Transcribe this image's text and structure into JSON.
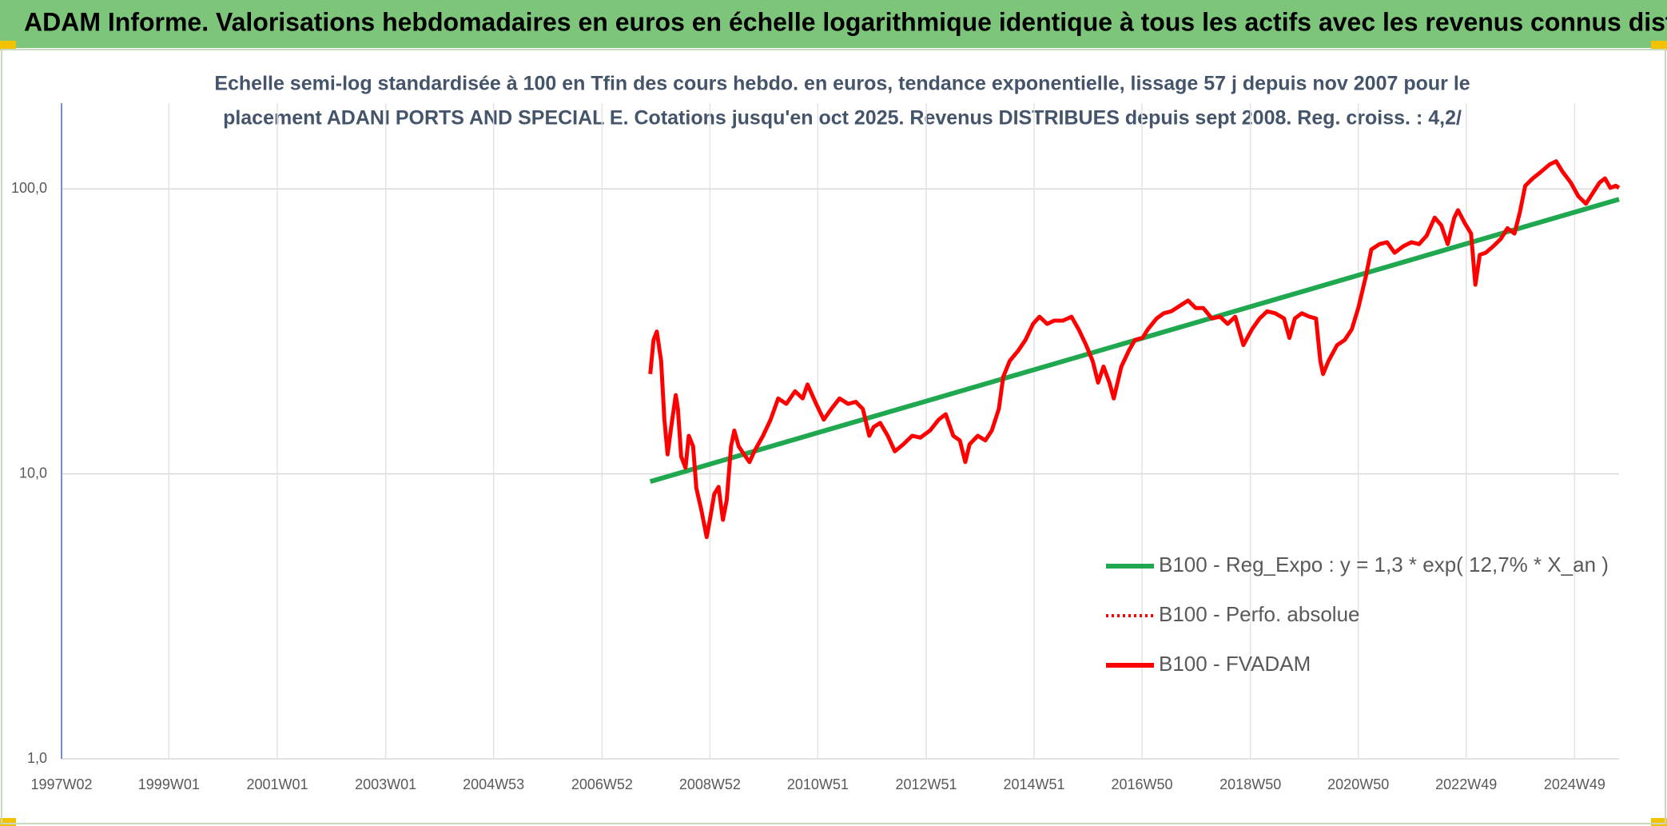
{
  "chart_data": {
    "type": "line",
    "title": "ADAM Informe. Valorisations hebdomadaires en euros en échelle logarithmique identique à tous les actifs avec les revenus connus distribués",
    "subtitle": [
      "Echelle semi-log standardisée à 100 en Tfin des cours hebdo. en euros, tendance exponentielle, lissage 57 j depuis nov 2007 pour le",
      "placement ADANI PORTS AND SPECIAL E. Cotations jusqu'en oct 2025. Revenus DISTRIBUES depuis sept 2008. Reg. croiss. : 4,2/"
    ],
    "log_y": true,
    "grid": true,
    "legend_position": "right",
    "xlim": [
      1997.02,
      2025.75
    ],
    "xticks": [
      {
        "value": 1997.02,
        "label": "1997W02"
      },
      {
        "value": 1999.0,
        "label": "1999W01"
      },
      {
        "value": 2001.0,
        "label": "2001W01"
      },
      {
        "value": 2003.0,
        "label": "2003W01"
      },
      {
        "value": 2004.99,
        "label": "2004W53"
      },
      {
        "value": 2006.99,
        "label": "2006W52"
      },
      {
        "value": 2008.98,
        "label": "2008W52"
      },
      {
        "value": 2010.97,
        "label": "2010W51"
      },
      {
        "value": 2012.97,
        "label": "2012W51"
      },
      {
        "value": 2014.96,
        "label": "2014W51"
      },
      {
        "value": 2016.95,
        "label": "2016W50"
      },
      {
        "value": 2018.95,
        "label": "2018W50"
      },
      {
        "value": 2020.94,
        "label": "2020W50"
      },
      {
        "value": 2022.93,
        "label": "2022W49"
      },
      {
        "value": 2024.93,
        "label": "2024W49"
      }
    ],
    "ylim": [
      1,
      200
    ],
    "yticks": [
      {
        "value": 1,
        "label": "1,0"
      },
      {
        "value": 10,
        "label": "10,0"
      },
      {
        "value": 100,
        "label": "100,0"
      }
    ],
    "series": [
      {
        "name": "B100 - Reg_Expo : y = 1,3 * exp( 12,7% *  X_an )",
        "color": "#1fa84f",
        "style": "solid",
        "x": [
          2007.88,
          2025.75
        ],
        "values": [
          9.4,
          92
        ]
      },
      {
        "name": "B100 - Perfo. absolue",
        "color": "#ff0000",
        "style": "dotted"
      },
      {
        "name": "B100 - FVADAM",
        "color": "#ff0000",
        "style": "solid",
        "x": [
          2007.88,
          2007.94,
          2008.0,
          2008.08,
          2008.14,
          2008.2,
          2008.27,
          2008.35,
          2008.39,
          2008.45,
          2008.53,
          2008.59,
          2008.67,
          2008.73,
          2008.82,
          2008.92,
          2008.98,
          2009.06,
          2009.14,
          2009.22,
          2009.29,
          2009.37,
          2009.43,
          2009.51,
          2009.61,
          2009.71,
          2009.8,
          2009.96,
          2010.1,
          2010.24,
          2010.39,
          2010.55,
          2010.69,
          2010.78,
          2010.94,
          2011.08,
          2011.22,
          2011.37,
          2011.53,
          2011.67,
          2011.8,
          2011.92,
          2012.0,
          2012.12,
          2012.26,
          2012.39,
          2012.55,
          2012.71,
          2012.86,
          2013.04,
          2013.2,
          2013.33,
          2013.47,
          2013.59,
          2013.69,
          2013.77,
          2013.92,
          2014.06,
          2014.18,
          2014.31,
          2014.39,
          2014.51,
          2014.67,
          2014.8,
          2014.94,
          2015.06,
          2015.2,
          2015.33,
          2015.49,
          2015.65,
          2015.78,
          2015.92,
          2016.04,
          2016.14,
          2016.24,
          2016.35,
          2016.43,
          2016.57,
          2016.71,
          2016.82,
          2016.96,
          2017.06,
          2017.22,
          2017.35,
          2017.49,
          2017.65,
          2017.8,
          2017.94,
          2018.08,
          2018.24,
          2018.39,
          2018.53,
          2018.67,
          2018.82,
          2018.98,
          2019.12,
          2019.26,
          2019.41,
          2019.57,
          2019.67,
          2019.77,
          2019.9,
          2020.04,
          2020.16,
          2020.24,
          2020.29,
          2020.39,
          2020.55,
          2020.69,
          2020.82,
          2020.94,
          2021.08,
          2021.18,
          2021.33,
          2021.47,
          2021.61,
          2021.77,
          2021.92,
          2022.06,
          2022.2,
          2022.35,
          2022.47,
          2022.59,
          2022.71,
          2022.78,
          2022.9,
          2023.02,
          2023.1,
          2023.18,
          2023.29,
          2023.43,
          2023.57,
          2023.69,
          2023.82,
          2023.92,
          2024.02,
          2024.16,
          2024.31,
          2024.47,
          2024.59,
          2024.71,
          2024.86,
          2025.0,
          2025.14,
          2025.29,
          2025.39,
          2025.49,
          2025.59,
          2025.69,
          2025.75
        ],
        "values": [
          22.4,
          29.5,
          31.6,
          24.9,
          15.5,
          11.7,
          14.8,
          18.9,
          16.9,
          11.5,
          10.5,
          13.6,
          12.5,
          8.9,
          7.5,
          6.0,
          6.9,
          8.5,
          9.0,
          6.9,
          8.1,
          12.5,
          14.2,
          12.5,
          11.7,
          11.0,
          12.0,
          13.6,
          15.5,
          18.4,
          17.6,
          19.5,
          18.4,
          20.6,
          17.6,
          15.5,
          16.9,
          18.4,
          17.6,
          17.9,
          16.9,
          13.6,
          14.6,
          15.1,
          13.6,
          12.0,
          12.7,
          13.6,
          13.4,
          14.2,
          15.5,
          16.2,
          13.6,
          13.1,
          11.0,
          12.7,
          13.6,
          13.1,
          14.2,
          16.9,
          21.9,
          24.9,
          27.1,
          29.5,
          33.6,
          35.6,
          33.6,
          34.5,
          34.5,
          35.6,
          32.2,
          28.3,
          24.9,
          20.9,
          23.8,
          20.9,
          18.4,
          23.8,
          27.1,
          29.5,
          30.0,
          32.2,
          35.1,
          36.6,
          37.2,
          38.9,
          40.6,
          38.2,
          38.2,
          35.1,
          35.6,
          33.6,
          35.6,
          28.3,
          32.2,
          35.1,
          37.2,
          36.6,
          35.1,
          30.0,
          35.1,
          36.6,
          35.6,
          35.1,
          24.9,
          22.4,
          24.9,
          28.3,
          29.5,
          32.2,
          38.2,
          49.4,
          61.3,
          64.0,
          65.0,
          59.7,
          62.9,
          65.0,
          64.0,
          68.5,
          79.3,
          74.6,
          64.0,
          79.3,
          84.2,
          76.0,
          69.7,
          46.1,
          58.7,
          59.7,
          62.9,
          66.8,
          72.8,
          69.7,
          82.8,
          102.6,
          108.9,
          114.8,
          121.9,
          125.0,
          114.8,
          105.2,
          94.2,
          88.7,
          98.3,
          105.2,
          108.9,
          100.9,
          102.6,
          100.9
        ]
      }
    ]
  }
}
